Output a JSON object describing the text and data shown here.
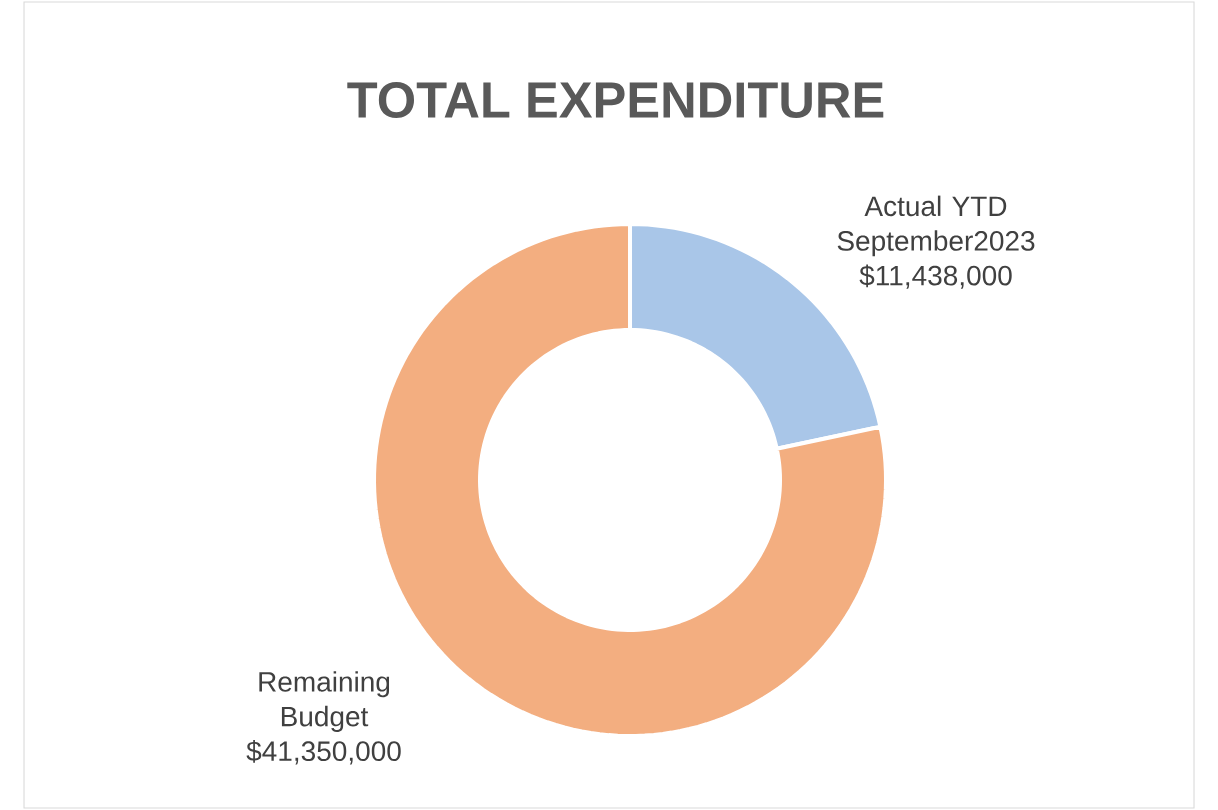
{
  "chart_data": {
    "type": "donut",
    "title": "TOTAL EXPENDITURE",
    "categories": [
      "Actual YTD September2023",
      "Remaining Budget"
    ],
    "values": [
      11438000,
      41350000
    ],
    "value_labels": [
      "$11,438,000",
      "$41,350,000"
    ],
    "colors": [
      "#a9c6e8",
      "#f3ae80"
    ]
  }
}
